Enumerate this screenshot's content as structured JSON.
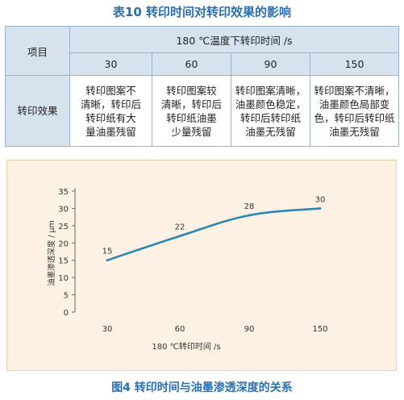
{
  "table": {
    "title": "表10 转印时间对转印效果的影响",
    "col_item": "项目",
    "group_header": "180 ℃温度下转印时间 /s",
    "times": [
      "30",
      "60",
      "90",
      "150"
    ],
    "row_label": "转印效果",
    "effects": [
      "转印图案不\n清晰，转印后\n转印纸有大\n量油墨残留",
      "转印图案较\n清晰，转印后\n转印纸油墨\n少量残留",
      "转印图案清晰，\n油墨颜色稳定，\n转印后转印纸\n油墨无残留",
      "转印图案不清晰，\n油墨颜色局部变\n色，转印后转印纸\n油墨无残留"
    ]
  },
  "figure": {
    "caption": "图4 转印时间与油墨渗透深度的关系"
  },
  "colors": {
    "title": "#2a6fb0",
    "line": "#2b87b3",
    "header_fill": "#d6e2ed",
    "chart_bg": "#fdf1e3"
  },
  "chart_data": {
    "type": "line",
    "categories": [
      "30",
      "60",
      "90",
      "150"
    ],
    "values": [
      15,
      22,
      28,
      30
    ],
    "data_labels": [
      "15",
      "22",
      "28",
      "30"
    ],
    "xlabel": "180 ℃转印时间 /s",
    "ylabel": "油墨渗透深度 / μm",
    "ylim": [
      0,
      35
    ],
    "yticks": [
      "0",
      "5",
      "10",
      "15",
      "20",
      "25",
      "30",
      "35"
    ],
    "grid": false
  }
}
